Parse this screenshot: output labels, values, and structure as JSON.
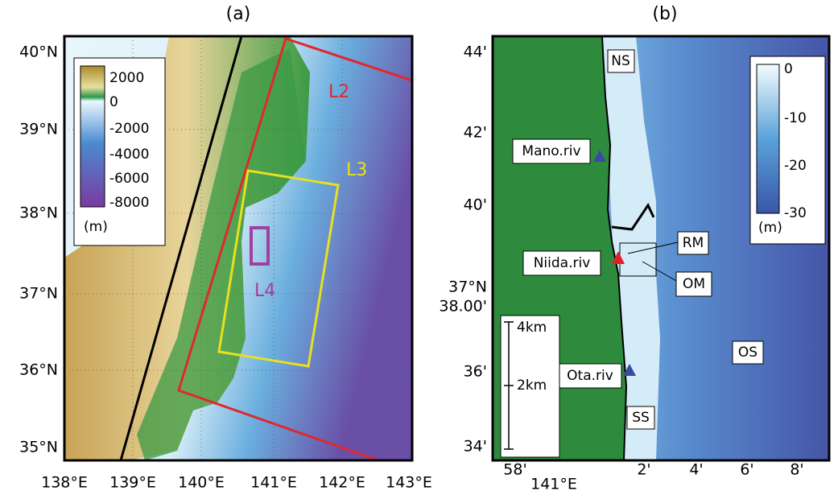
{
  "panel_a": {
    "title": "(a)",
    "lat_labels": [
      "40°N",
      "39°N",
      "38°N",
      "37°N",
      "36°N",
      "35°N"
    ],
    "lon_labels": [
      "138°E",
      "139°E",
      "140°E",
      "141°E",
      "142°E",
      "143°E"
    ],
    "colorbar": {
      "labels": [
        "2000",
        "0",
        "-2000",
        "-4000",
        "-6000",
        "-8000"
      ],
      "unit": "(m)"
    },
    "regions": [
      "L2",
      "L3",
      "L4"
    ]
  },
  "panel_b": {
    "title": "(b)",
    "lat_labels": [
      "44'",
      "42'",
      "40'",
      "37°N",
      "38.00'",
      "36'",
      "34'"
    ],
    "lon_labels": [
      "58'",
      "141°E",
      "2'",
      "4'",
      "6'",
      "8'"
    ],
    "colorbar": {
      "labels": [
        "0",
        "-10",
        "-20",
        "-30"
      ],
      "unit": "(m)"
    },
    "sites": [
      "NS",
      "Mano.riv",
      "RM",
      "Niida.riv",
      "OM",
      "OS",
      "Ota.riv",
      "SS"
    ],
    "scale_bar": [
      "4km",
      "2km"
    ]
  }
}
